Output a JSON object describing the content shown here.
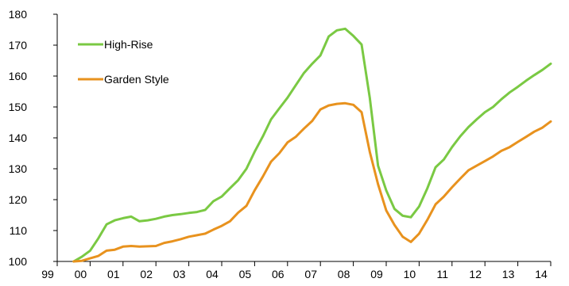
{
  "chart_data": {
    "type": "line",
    "title": "",
    "xlabel": "",
    "ylabel": "",
    "x_ticks": [
      "99",
      "00",
      "01",
      "02",
      "03",
      "04",
      "05",
      "06",
      "07",
      "08",
      "09",
      "10",
      "11",
      "12",
      "13",
      "14"
    ],
    "y_ticks": [
      100,
      110,
      120,
      130,
      140,
      150,
      160,
      170,
      180
    ],
    "xlim": [
      1999.0,
      2014.0
    ],
    "ylim": [
      100,
      180
    ],
    "grid": false,
    "legend_position": "top-left",
    "series": [
      {
        "name": "High-Rise",
        "color": "#7ac943",
        "x": [
          1999.5,
          1999.75,
          2000.0,
          2000.25,
          2000.5,
          2000.75,
          2001.0,
          2001.25,
          2001.5,
          2001.75,
          2002.0,
          2002.25,
          2002.5,
          2002.75,
          2003.0,
          2003.25,
          2003.5,
          2003.75,
          2004.0,
          2004.25,
          2004.5,
          2004.75,
          2005.0,
          2005.25,
          2005.5,
          2005.75,
          2006.0,
          2006.25,
          2006.5,
          2006.75,
          2007.0,
          2007.25,
          2007.5,
          2007.75,
          2008.0,
          2008.25,
          2008.5,
          2008.75,
          2009.0,
          2009.25,
          2009.5,
          2009.75,
          2010.0,
          2010.25,
          2010.5,
          2010.75,
          2011.0,
          2011.25,
          2011.5,
          2011.75,
          2012.0,
          2012.25,
          2012.5,
          2012.75,
          2013.0,
          2013.25,
          2013.5,
          2013.75,
          2014.0
        ],
        "values": [
          100.0,
          101.5,
          103.5,
          107.5,
          112.0,
          113.3,
          114.0,
          114.5,
          113.0,
          113.3,
          113.8,
          114.5,
          115.0,
          115.3,
          115.7,
          116.0,
          116.7,
          119.5,
          121.0,
          123.7,
          126.3,
          130.0,
          135.5,
          140.5,
          146.0,
          149.5,
          153.0,
          157.0,
          161.0,
          164.0,
          166.7,
          172.8,
          174.8,
          175.3,
          173.0,
          170.2,
          153.0,
          131.0,
          123.0,
          117.0,
          114.8,
          114.3,
          117.8,
          123.7,
          130.5,
          133.0,
          137.0,
          140.5,
          143.5,
          146.0,
          148.3,
          150.0,
          152.5,
          154.7,
          156.5,
          158.5,
          160.3,
          162.0,
          164.0
        ]
      },
      {
        "name": "Garden Style",
        "color": "#e8921e",
        "x": [
          1999.5,
          1999.75,
          2000.0,
          2000.25,
          2000.5,
          2000.75,
          2001.0,
          2001.25,
          2001.5,
          2001.75,
          2002.0,
          2002.25,
          2002.5,
          2002.75,
          2003.0,
          2003.25,
          2003.5,
          2003.75,
          2004.0,
          2004.25,
          2004.5,
          2004.75,
          2005.0,
          2005.25,
          2005.5,
          2005.75,
          2006.0,
          2006.25,
          2006.5,
          2006.75,
          2007.0,
          2007.25,
          2007.5,
          2007.75,
          2008.0,
          2008.25,
          2008.5,
          2008.75,
          2009.0,
          2009.25,
          2009.5,
          2009.75,
          2010.0,
          2010.25,
          2010.5,
          2010.75,
          2011.0,
          2011.25,
          2011.5,
          2011.75,
          2012.0,
          2012.25,
          2012.5,
          2012.75,
          2013.0,
          2013.25,
          2013.5,
          2013.75,
          2014.0
        ],
        "values": [
          100.0,
          100.2,
          101.0,
          101.8,
          103.5,
          103.8,
          104.8,
          105.0,
          104.8,
          104.9,
          105.0,
          106.0,
          106.5,
          107.2,
          108.0,
          108.5,
          109.0,
          110.3,
          111.5,
          113.0,
          115.8,
          118.0,
          123.0,
          127.5,
          132.3,
          135.0,
          138.5,
          140.3,
          143.0,
          145.5,
          149.2,
          150.5,
          151.0,
          151.2,
          150.7,
          148.3,
          135.5,
          125.0,
          116.5,
          111.8,
          108.0,
          106.3,
          109.0,
          113.5,
          118.5,
          121.0,
          124.0,
          126.8,
          129.5,
          131.0,
          132.5,
          134.0,
          135.8,
          137.0,
          138.7,
          140.3,
          142.0,
          143.3,
          145.3
        ]
      }
    ]
  }
}
